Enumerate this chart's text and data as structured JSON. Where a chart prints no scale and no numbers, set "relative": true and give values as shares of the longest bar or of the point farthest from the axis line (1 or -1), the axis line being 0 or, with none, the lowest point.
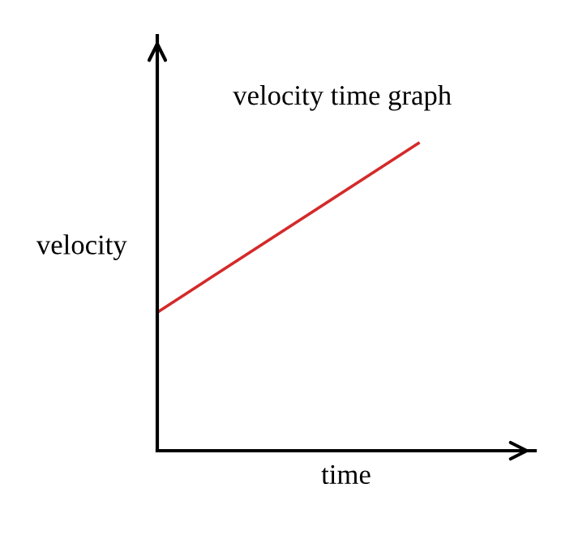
{
  "chart_data": {
    "type": "line",
    "title": "velocity time graph",
    "xlabel": "time",
    "ylabel": "velocity",
    "relative": true,
    "categories": [
      null,
      null
    ],
    "series": [
      {
        "color": "#d42a2a",
        "values": [
          0.45,
          1.0
        ]
      }
    ],
    "legend": false,
    "marker": "none",
    "line_style": "solid"
  }
}
